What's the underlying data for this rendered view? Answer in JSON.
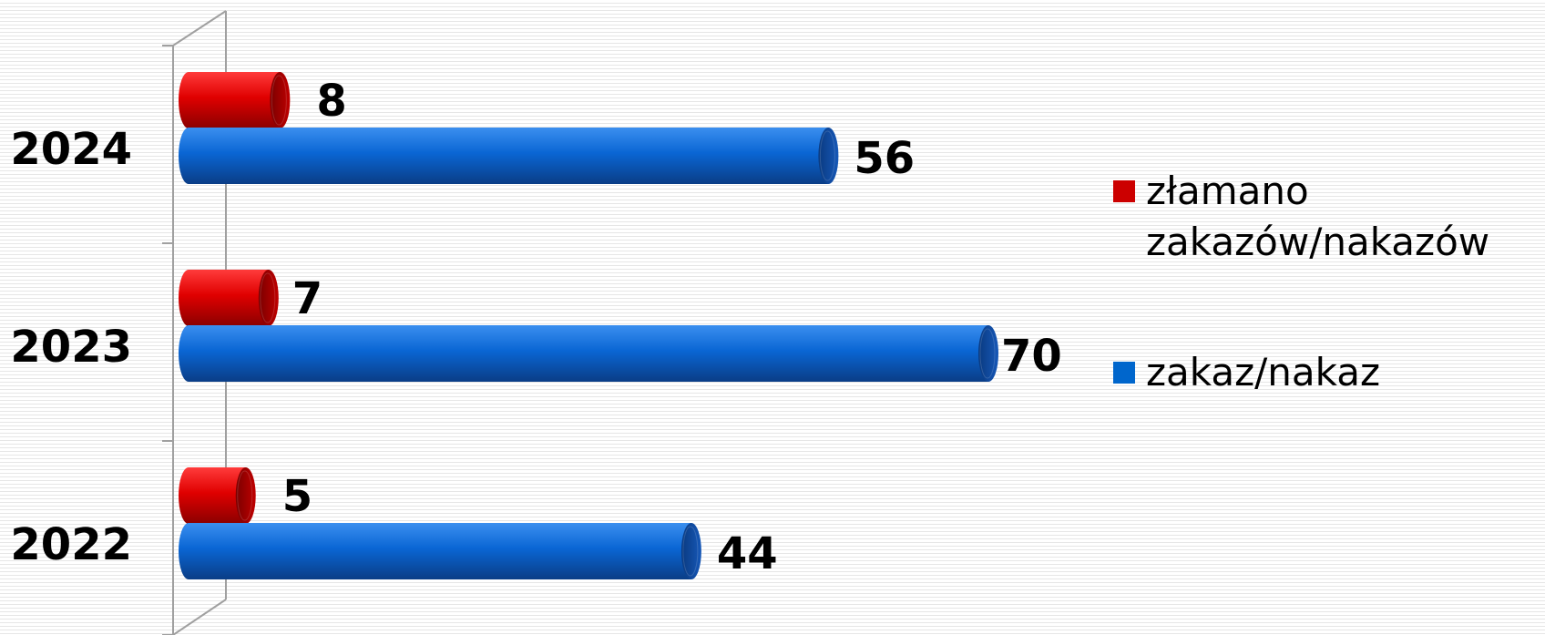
{
  "chart_data": {
    "type": "bar",
    "orientation": "horizontal",
    "style": "3d-cylinder",
    "categories": [
      "2024",
      "2023",
      "2022"
    ],
    "series": [
      {
        "name": "złamano zakazów/nakazów",
        "legend_lines": [
          "złamano",
          "zakazów/nakazów"
        ],
        "values": [
          8,
          7,
          5
        ],
        "color": "#cc0000"
      },
      {
        "name": "zakaz/nakaz",
        "legend_lines": [
          "zakaz/nakaz"
        ],
        "values": [
          56,
          70,
          44
        ],
        "color": "#0066cc"
      }
    ],
    "xlim": [
      0,
      70
    ],
    "grid": false,
    "legend": "right"
  }
}
